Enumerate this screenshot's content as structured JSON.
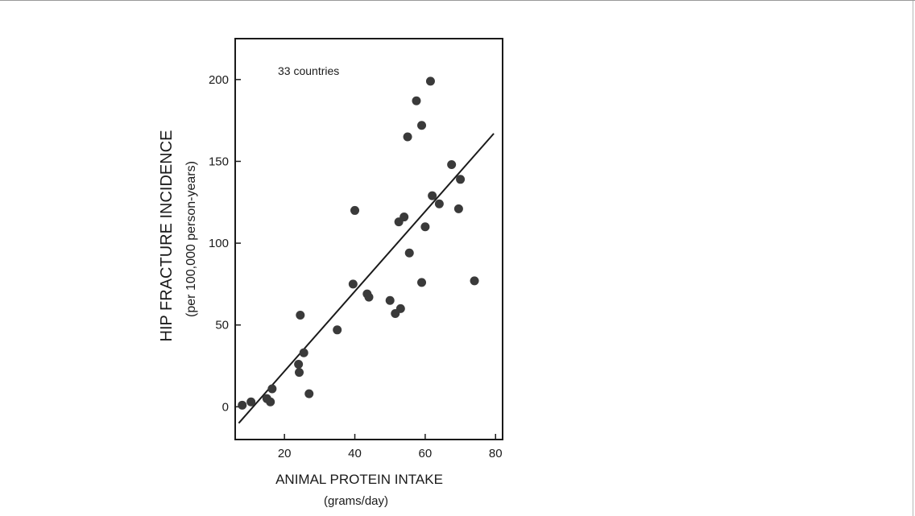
{
  "chart_data": {
    "type": "scatter",
    "annotation": "33 countries",
    "ylabel": "HIP FRACTURE INCIDENCE",
    "ylabel_sub": "(per 100,000 person-years)",
    "xlabel": "ANIMAL PROTEIN INTAKE",
    "xlabel_sub": "(grams/day)",
    "xlim": [
      6,
      82
    ],
    "ylim": [
      -20,
      225
    ],
    "x_ticks": [
      20,
      40,
      60,
      80
    ],
    "y_ticks": [
      0,
      50,
      100,
      150,
      200
    ],
    "grid": false,
    "legend": "none",
    "marker_color": "#3a3a3a",
    "line_color": "#1a1a1a",
    "points": [
      {
        "x": 8,
        "y": 1
      },
      {
        "x": 10.5,
        "y": 3
      },
      {
        "x": 15,
        "y": 5
      },
      {
        "x": 16,
        "y": 3
      },
      {
        "x": 16.5,
        "y": 11
      },
      {
        "x": 24,
        "y": 26
      },
      {
        "x": 24.2,
        "y": 21
      },
      {
        "x": 24.5,
        "y": 56
      },
      {
        "x": 25.5,
        "y": 33
      },
      {
        "x": 27,
        "y": 8
      },
      {
        "x": 35,
        "y": 47
      },
      {
        "x": 39.5,
        "y": 75
      },
      {
        "x": 40,
        "y": 120
      },
      {
        "x": 43.5,
        "y": 69
      },
      {
        "x": 44,
        "y": 67
      },
      {
        "x": 50,
        "y": 65
      },
      {
        "x": 51.5,
        "y": 57
      },
      {
        "x": 52.5,
        "y": 113
      },
      {
        "x": 53,
        "y": 60
      },
      {
        "x": 54,
        "y": 116
      },
      {
        "x": 55,
        "y": 165
      },
      {
        "x": 55.5,
        "y": 94
      },
      {
        "x": 57.5,
        "y": 187
      },
      {
        "x": 59,
        "y": 172
      },
      {
        "x": 59,
        "y": 76
      },
      {
        "x": 60,
        "y": 110
      },
      {
        "x": 61.5,
        "y": 199
      },
      {
        "x": 62,
        "y": 129
      },
      {
        "x": 64,
        "y": 124
      },
      {
        "x": 67.5,
        "y": 148
      },
      {
        "x": 69.5,
        "y": 121
      },
      {
        "x": 70,
        "y": 139
      },
      {
        "x": 74,
        "y": 77
      }
    ],
    "trend_line": [
      {
        "x": 7,
        "y": -10
      },
      {
        "x": 79.5,
        "y": 167
      }
    ]
  }
}
